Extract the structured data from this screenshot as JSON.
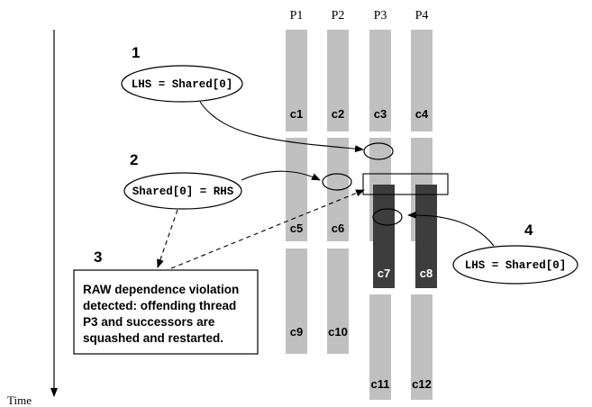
{
  "processors": [
    "P1",
    "P2",
    "P3",
    "P4"
  ],
  "time_label": "Time",
  "chunks": [
    "c1",
    "c2",
    "c3",
    "c4",
    "c5",
    "c6",
    "c7",
    "c8",
    "c9",
    "c10",
    "c11",
    "c12"
  ],
  "steps": [
    "1",
    "2",
    "3",
    "4"
  ],
  "ops": {
    "load_1": "LHS = Shared[0]",
    "store_2": "Shared[0] = RHS",
    "load_4": "LHS = Shared[0]"
  },
  "violation_note": [
    "RAW dependence violation",
    "detected: offending thread",
    "P3 and successors are",
    "squashed and restarted."
  ],
  "colors": {
    "active_segment": "#c0c0c0",
    "squashed_segment": "#3d3d3d",
    "line": "#000000"
  }
}
